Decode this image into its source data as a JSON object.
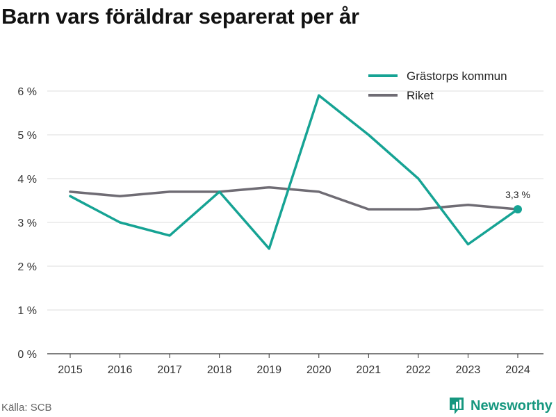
{
  "title": "Barn vars föräldrar separerat per år",
  "source": "Källa: SCB",
  "brand": {
    "name": "Newsworthy",
    "color": "#16977f"
  },
  "chart_data": {
    "type": "line",
    "title": "Barn vars föräldrar separerat per år",
    "xlabel": "",
    "ylabel": "",
    "x": [
      "2015",
      "2016",
      "2017",
      "2018",
      "2019",
      "2020",
      "2021",
      "2022",
      "2023",
      "2024"
    ],
    "ylim": [
      0,
      6
    ],
    "y_ticks": [
      0,
      1,
      2,
      3,
      4,
      5,
      6
    ],
    "y_tick_labels": [
      "0 %",
      "1 %",
      "2 %",
      "3 %",
      "4 %",
      "5 %",
      "6 %"
    ],
    "grid": true,
    "legend": "top-right",
    "series": [
      {
        "name": "Grästorps kommun",
        "color": "#16a394",
        "values": [
          3.6,
          3.0,
          2.7,
          3.7,
          2.4,
          5.9,
          5.0,
          4.0,
          2.5,
          3.3
        ]
      },
      {
        "name": "Riket",
        "color": "#6f6c74",
        "values": [
          3.7,
          3.6,
          3.7,
          3.7,
          3.8,
          3.7,
          3.3,
          3.3,
          3.4,
          3.3
        ]
      }
    ],
    "annotations": [
      {
        "series": 0,
        "index": 9,
        "label": "3,3 %"
      }
    ]
  }
}
